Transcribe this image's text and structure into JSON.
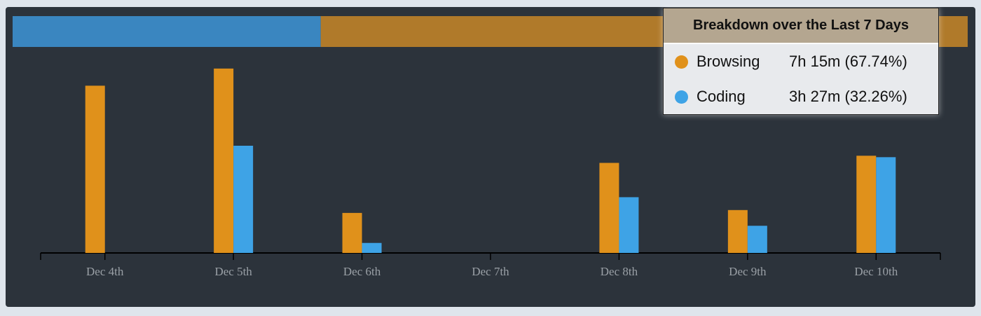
{
  "chart_data": {
    "type": "bar",
    "categories": [
      "Dec 4th",
      "Dec 5th",
      "Dec 6th",
      "Dec 7th",
      "Dec 8th",
      "Dec 9th",
      "Dec 10th"
    ],
    "series": [
      {
        "name": "Browsing",
        "color": "#e0911b",
        "values": [
          117,
          129,
          28,
          0,
          63,
          30,
          68
        ]
      },
      {
        "name": "Coding",
        "color": "#3ea3e6",
        "values": [
          0,
          75,
          7,
          0,
          39,
          19,
          67
        ]
      }
    ],
    "breakdown": {
      "title": "Breakdown over the Last 7 Days",
      "items": [
        {
          "name": "Browsing",
          "color": "#e0911b",
          "bar_color": "#b07a2a",
          "duration": "7h 15m",
          "percent": 67.74,
          "percent_label": "(67.74%)"
        },
        {
          "name": "Coding",
          "color": "#3ea3e6",
          "bar_color": "#3a86c0",
          "duration": "3h 27m",
          "percent": 32.26,
          "percent_label": "(32.26%)"
        }
      ]
    }
  }
}
